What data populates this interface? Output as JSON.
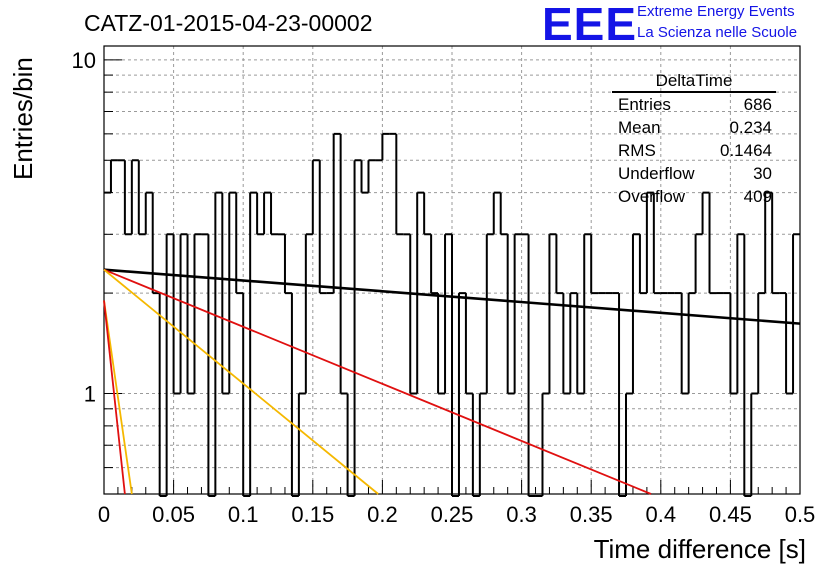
{
  "chart_data": {
    "type": "histogram",
    "title": "CATZ-01-2015-04-23-00002",
    "xlabel": "Time difference [s]",
    "ylabel": "Entries/bin",
    "xlim": [
      0,
      0.5
    ],
    "ylim": [
      0.5,
      11
    ],
    "y_scale": "log",
    "grid": true,
    "x_ticks": [
      "0",
      "0.05",
      "0.1",
      "0.15",
      "0.2",
      "0.25",
      "0.3",
      "0.35",
      "0.4",
      "0.45",
      "0.5"
    ],
    "y_ticks": [
      "1",
      "10"
    ],
    "histogram": {
      "name": "DeltaTime",
      "bin_width": 0.005,
      "counts": [
        4,
        5,
        5,
        3,
        5,
        3,
        4,
        2,
        0,
        3,
        1,
        3,
        1,
        3,
        3,
        0,
        4,
        1,
        4,
        2,
        0,
        4,
        3,
        4,
        3,
        3,
        2,
        0,
        1,
        3,
        5,
        2,
        2,
        6,
        1,
        0,
        5,
        4,
        5,
        5,
        6,
        6,
        3,
        3,
        1,
        4,
        3,
        2,
        1,
        3,
        0,
        2,
        1,
        0,
        1,
        3,
        4,
        3,
        1,
        3,
        3,
        0,
        0,
        1,
        3,
        2,
        1,
        2,
        1,
        3,
        2,
        2,
        2,
        2,
        0,
        1,
        3,
        2,
        4,
        2,
        2,
        2,
        2,
        1,
        2,
        3,
        4,
        2,
        2,
        2,
        1,
        3,
        0,
        1,
        2,
        4,
        2,
        2,
        1,
        3
      ]
    },
    "fit_lines": [
      {
        "color": "#000000",
        "points": [
          [
            0.0,
            2.35
          ],
          [
            0.5,
            1.62
          ]
        ]
      },
      {
        "color": "#e01010",
        "points": [
          [
            0.0,
            2.35
          ],
          [
            0.393,
            0.5
          ]
        ]
      },
      {
        "color": "#f5b800",
        "points": [
          [
            0.0,
            2.35
          ],
          [
            0.197,
            0.5
          ]
        ]
      },
      {
        "color": "#f5b800",
        "points": [
          [
            0.0,
            1.9
          ],
          [
            0.02,
            0.5
          ]
        ]
      },
      {
        "color": "#e01010",
        "points": [
          [
            0.0,
            1.9
          ],
          [
            0.015,
            0.5
          ]
        ]
      }
    ],
    "stats": {
      "title": "DeltaTime",
      "rows": [
        {
          "label": "Entries",
          "value": "686"
        },
        {
          "label": "Mean",
          "value": "0.234"
        },
        {
          "label": "RMS",
          "value": "0.1464"
        },
        {
          "label": "Underflow",
          "value": "30"
        },
        {
          "label": "Overflow",
          "value": "409"
        }
      ]
    }
  },
  "logo": {
    "text": "EEE",
    "line1": "Extreme Energy Events",
    "line2": "La Scienza nelle Scuole"
  }
}
